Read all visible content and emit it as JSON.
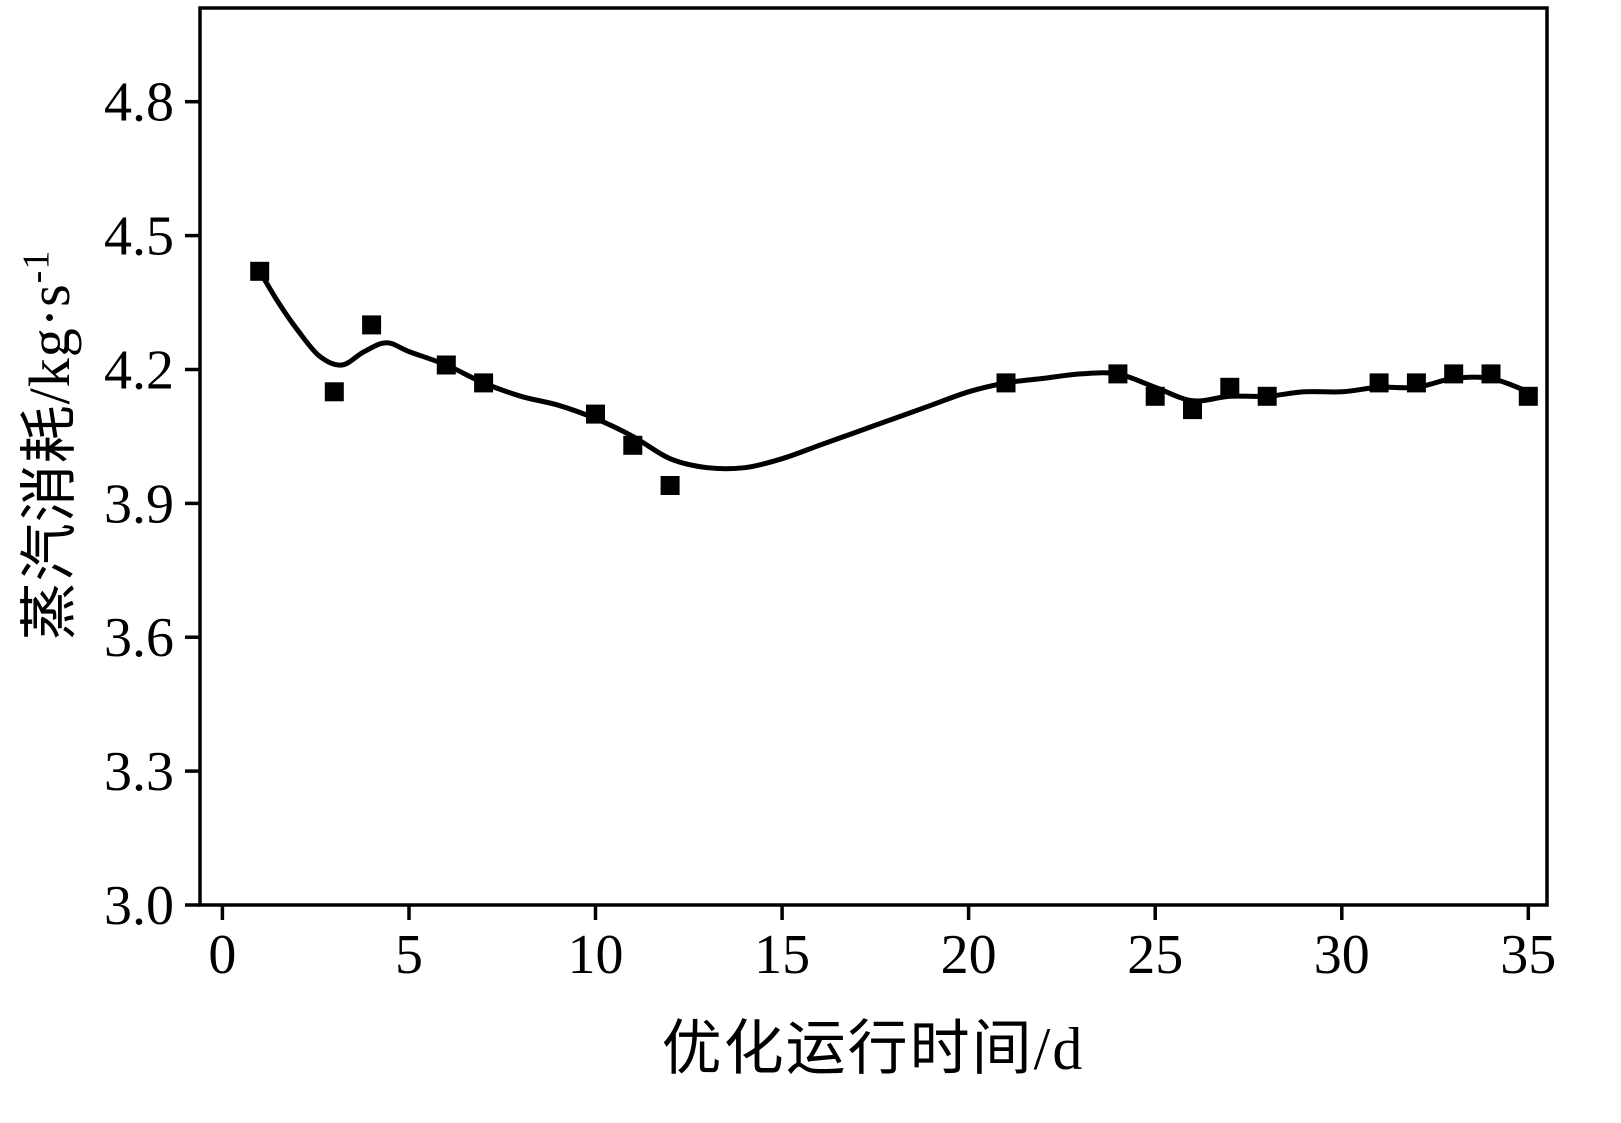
{
  "chart_data": {
    "type": "scatter",
    "title": "",
    "xlabel": "优化运行时间/d",
    "ylabel_base": "蒸汽消耗/kg·s",
    "ylabel_sup": "-1",
    "xlim": [
      -0.6,
      35.5
    ],
    "ylim": [
      3.0,
      5.01
    ],
    "xticks": [
      0,
      5,
      10,
      15,
      20,
      25,
      30,
      35
    ],
    "yticks": [
      3.0,
      3.3,
      3.6,
      3.9,
      4.2,
      4.5,
      4.8
    ],
    "grid": false,
    "legend": "none",
    "marker": "square",
    "marker_color": "#000000",
    "line_color": "#000000",
    "points": [
      [
        1,
        4.42
      ],
      [
        3,
        4.15
      ],
      [
        4,
        4.3
      ],
      [
        6,
        4.21
      ],
      [
        7,
        4.17
      ],
      [
        10,
        4.1
      ],
      [
        11,
        4.03
      ],
      [
        12,
        3.94
      ],
      [
        21,
        4.17
      ],
      [
        24,
        4.19
      ],
      [
        25,
        4.14
      ],
      [
        26,
        4.11
      ],
      [
        27,
        4.16
      ],
      [
        28,
        4.14
      ],
      [
        31,
        4.17
      ],
      [
        32,
        4.17
      ],
      [
        33,
        4.19
      ],
      [
        34,
        4.19
      ],
      [
        35,
        4.14
      ]
    ],
    "curve": [
      [
        1,
        4.42
      ],
      [
        1.5,
        4.35
      ],
      [
        2,
        4.29
      ],
      [
        2.6,
        4.23
      ],
      [
        3.2,
        4.21
      ],
      [
        3.8,
        4.24
      ],
      [
        4.4,
        4.26
      ],
      [
        5,
        4.24
      ],
      [
        6,
        4.21
      ],
      [
        7,
        4.17
      ],
      [
        8,
        4.14
      ],
      [
        9,
        4.12
      ],
      [
        10,
        4.09
      ],
      [
        11,
        4.05
      ],
      [
        12,
        4.0
      ],
      [
        13,
        3.98
      ],
      [
        14,
        3.98
      ],
      [
        15,
        4.0
      ],
      [
        16,
        4.03
      ],
      [
        17,
        4.06
      ],
      [
        18,
        4.09
      ],
      [
        19,
        4.12
      ],
      [
        20,
        4.15
      ],
      [
        21,
        4.17
      ],
      [
        22,
        4.18
      ],
      [
        23,
        4.19
      ],
      [
        24,
        4.19
      ],
      [
        25,
        4.16
      ],
      [
        26,
        4.13
      ],
      [
        27,
        4.14
      ],
      [
        28,
        4.14
      ],
      [
        29,
        4.15
      ],
      [
        30,
        4.15
      ],
      [
        31,
        4.16
      ],
      [
        32,
        4.16
      ],
      [
        33,
        4.18
      ],
      [
        34,
        4.18
      ],
      [
        35,
        4.15
      ]
    ]
  }
}
